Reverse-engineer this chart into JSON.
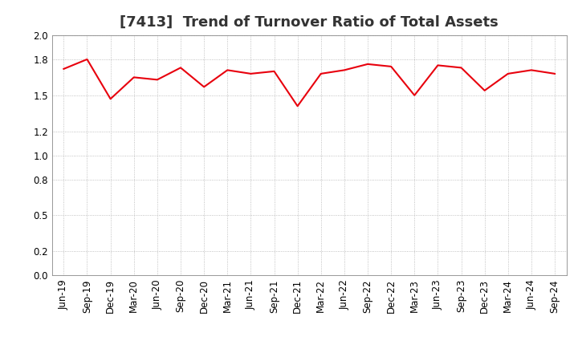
{
  "title": "[7413]  Trend of Turnover Ratio of Total Assets",
  "x_labels": [
    "Jun-19",
    "Sep-19",
    "Dec-19",
    "Mar-20",
    "Jun-20",
    "Sep-20",
    "Dec-20",
    "Mar-21",
    "Jun-21",
    "Sep-21",
    "Dec-21",
    "Mar-22",
    "Jun-22",
    "Sep-22",
    "Dec-22",
    "Mar-23",
    "Jun-23",
    "Sep-23",
    "Dec-23",
    "Mar-24",
    "Jun-24",
    "Sep-24"
  ],
  "values": [
    1.72,
    1.8,
    1.47,
    1.65,
    1.63,
    1.73,
    1.57,
    1.71,
    1.68,
    1.7,
    1.41,
    1.68,
    1.71,
    1.76,
    1.74,
    1.5,
    1.75,
    1.73,
    1.54,
    1.68,
    1.71,
    1.68
  ],
  "line_color": "#e8000d",
  "background_color": "#ffffff",
  "grid_color": "#b0b0b0",
  "ylim": [
    0.0,
    2.0
  ],
  "yticks": [
    0.0,
    0.2,
    0.5,
    0.8,
    1.0,
    1.2,
    1.5,
    1.8,
    2.0
  ],
  "title_fontsize": 13,
  "tick_fontsize": 8.5
}
